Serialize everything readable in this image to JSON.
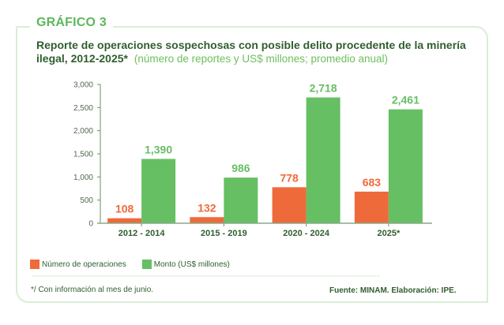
{
  "header": {
    "figure_label": "GRÁFICO 3",
    "title": "Reporte de operaciones sospechosas con posible delito procedente de la minería ilegal, 2012-2025*",
    "subtitle": "(número de reportes y US$ millones; promedio anual)"
  },
  "chart_data": {
    "type": "bar",
    "title": "Reporte de operaciones sospechosas con posible delito procedente de la minería ilegal, 2012-2025*",
    "subtitle": "(número de reportes y US$ millones; promedio anual)",
    "categories": [
      "2012 - 2014",
      "2015 - 2019",
      "2020 - 2024",
      "2025*"
    ],
    "series": [
      {
        "name": "Número de operaciones",
        "color": "#ef6a3a",
        "values": [
          108,
          132,
          778,
          683
        ],
        "labels": [
          "108",
          "132",
          "778",
          "683"
        ]
      },
      {
        "name": "Monto (US$ millones)",
        "color": "#66bf63",
        "values": [
          1390,
          986,
          2718,
          2461
        ],
        "labels": [
          "1,390",
          "986",
          "2,718",
          "2,461"
        ]
      }
    ],
    "ylim": [
      0,
      3000
    ],
    "yticks": [
      0,
      500,
      1000,
      1500,
      2000,
      2500,
      3000
    ],
    "ytick_labels": [
      "0",
      "500",
      "1,000",
      "1,500",
      "2,000",
      "2,500",
      "3,000"
    ],
    "xlabel": "",
    "ylabel": "",
    "grid": false,
    "legend": "bottom-left"
  },
  "legend": {
    "items": [
      {
        "label": "Número de operaciones",
        "color": "#ef6a3a"
      },
      {
        "label": "Monto (US$ millones)",
        "color": "#66bf63"
      }
    ]
  },
  "footer": {
    "note": "*/ Con información al mes de junio.",
    "source": "Fuente: MINAM. Elaboración: IPE."
  },
  "colors": {
    "frame": "#d9eed6",
    "title": "#2f5e2f",
    "accent_green": "#5cb85c",
    "axis": "#5a7d5a"
  }
}
